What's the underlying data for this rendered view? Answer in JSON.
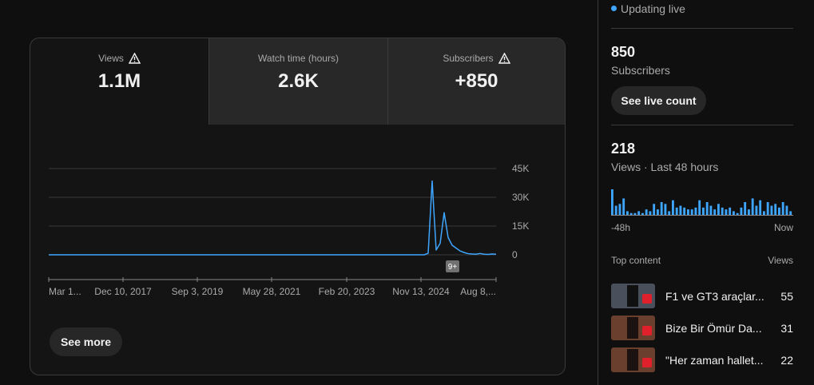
{
  "tabs": [
    {
      "label": "Views",
      "value": "1.1M"
    },
    {
      "label": "Watch time (hours)",
      "value": "2.6K"
    },
    {
      "label": "Subscribers",
      "value": "+850"
    }
  ],
  "chart": {
    "type": "line",
    "color": "#3ea6ff",
    "x": [
      0,
      94,
      95,
      96,
      97,
      98,
      99,
      100,
      101,
      102,
      103,
      104,
      105,
      106,
      107,
      108,
      109,
      110,
      111,
      112
    ],
    "values": [
      0,
      0,
      800,
      38500,
      2500,
      6000,
      22000,
      9000,
      5000,
      3500,
      2000,
      1200,
      600,
      400,
      300,
      700,
      300,
      200,
      400,
      300
    ],
    "xlim": [
      0,
      112
    ],
    "ylim": [
      0,
      45000
    ],
    "yticks": [
      0,
      {
        "value": 15000,
        "label": "15K"
      },
      {
        "value": 30000,
        "label": "30K"
      },
      {
        "value": 45000,
        "label": "45K"
      }
    ],
    "xticks": [
      {
        "value": 0,
        "label": "Mar 1..."
      },
      {
        "value": 18.6,
        "label": "Dec 10, 2017"
      },
      {
        "value": 37.2,
        "label": "Sep 3, 2019"
      },
      {
        "value": 55.8,
        "label": "May 28, 2021"
      },
      {
        "value": 74.6,
        "label": "Feb 20, 2023"
      },
      {
        "value": 93.2,
        "label": "Nov 13, 2024"
      },
      {
        "value": 112,
        "label": "Aug 8,..."
      }
    ],
    "grid": true,
    "badge": "9+"
  },
  "see_more": "See more",
  "live": {
    "status": "Updating live",
    "subscribers": {
      "value": 850,
      "label": "Subscribers"
    },
    "button": "See live count",
    "views": {
      "value": 218,
      "label": "Views · Last 48 hours"
    },
    "sparkline": {
      "type": "bar",
      "color": "#3ea6ff",
      "values": [
        14,
        5,
        6,
        9,
        2,
        1,
        1,
        2,
        1,
        3,
        2,
        6,
        3,
        7,
        6,
        2,
        8,
        4,
        5,
        4,
        3,
        3,
        4,
        8,
        4,
        7,
        5,
        3,
        6,
        4,
        3,
        4,
        2,
        1,
        4,
        7,
        3,
        9,
        5,
        8,
        2,
        7,
        5,
        6,
        4,
        7,
        5,
        2
      ],
      "ylim": [
        0,
        14
      ],
      "start_label": "-48h",
      "end_label": "Now"
    }
  },
  "top_content": {
    "title": "Top content",
    "column": "Views",
    "items": [
      {
        "title": "F1 ve GT3 araçlar...",
        "views": 55
      },
      {
        "title": "Bize Bir Ömür Da...",
        "views": 31
      },
      {
        "title": "\"Her zaman hallet...",
        "views": 22
      }
    ]
  }
}
